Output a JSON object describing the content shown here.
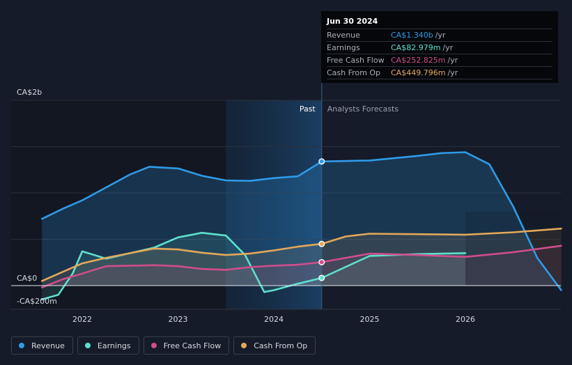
{
  "chart_data": {
    "type": "area",
    "x_ticks": [
      "2022",
      "2023",
      "2024",
      "2025",
      "2026"
    ],
    "y_ticks": [
      {
        "label": "CA$2b",
        "value": 2000
      },
      {
        "label": "CA$0",
        "value": 0
      },
      {
        "label": "-CA$200m",
        "value": -200
      }
    ],
    "divider_labels": {
      "past": "Past",
      "forecast": "Analysts Forecasts"
    },
    "highlight_date": 2024.5,
    "series": [
      {
        "name": "Revenue",
        "color": "#2f9be8",
        "points": [
          [
            2021.58,
            720
          ],
          [
            2021.8,
            830
          ],
          [
            2022.0,
            920
          ],
          [
            2022.25,
            1060
          ],
          [
            2022.5,
            1200
          ],
          [
            2022.7,
            1283
          ],
          [
            2023.0,
            1265
          ],
          [
            2023.25,
            1185
          ],
          [
            2023.5,
            1135
          ],
          [
            2023.75,
            1130
          ],
          [
            2024.0,
            1160
          ],
          [
            2024.25,
            1180
          ],
          [
            2024.5,
            1340
          ],
          [
            2025.0,
            1350
          ],
          [
            2025.5,
            1400
          ],
          [
            2025.75,
            1430
          ],
          [
            2026.0,
            1440
          ],
          [
            2026.25,
            1310
          ],
          [
            2026.5,
            850
          ],
          [
            2026.75,
            300
          ],
          [
            2027.0,
            -50
          ]
        ]
      },
      {
        "name": "Earnings",
        "color": "#5de0cd",
        "points": [
          [
            2021.58,
            -150
          ],
          [
            2021.75,
            -100
          ],
          [
            2021.9,
            130
          ],
          [
            2022.0,
            370
          ],
          [
            2022.25,
            290
          ],
          [
            2022.5,
            350
          ],
          [
            2022.75,
            410
          ],
          [
            2023.0,
            520
          ],
          [
            2023.25,
            570
          ],
          [
            2023.5,
            540
          ],
          [
            2023.7,
            330
          ],
          [
            2023.9,
            -70
          ],
          [
            2024.0,
            -50
          ],
          [
            2024.25,
            20
          ],
          [
            2024.5,
            83
          ],
          [
            2025.0,
            320
          ],
          [
            2025.5,
            340
          ],
          [
            2026.0,
            350
          ]
        ]
      },
      {
        "name": "Free Cash Flow",
        "color": "#d04d8c",
        "points": [
          [
            2021.58,
            -20
          ],
          [
            2021.8,
            70
          ],
          [
            2022.0,
            130
          ],
          [
            2022.25,
            210
          ],
          [
            2022.5,
            215
          ],
          [
            2022.75,
            220
          ],
          [
            2023.0,
            210
          ],
          [
            2023.25,
            180
          ],
          [
            2023.5,
            170
          ],
          [
            2023.75,
            200
          ],
          [
            2024.0,
            215
          ],
          [
            2024.25,
            225
          ],
          [
            2024.5,
            253
          ],
          [
            2025.0,
            345
          ],
          [
            2025.5,
            330
          ],
          [
            2026.0,
            310
          ],
          [
            2026.5,
            360
          ],
          [
            2027.0,
            430
          ]
        ]
      },
      {
        "name": "Cash From Op",
        "color": "#e4a85a",
        "points": [
          [
            2021.58,
            50
          ],
          [
            2021.8,
            150
          ],
          [
            2022.0,
            240
          ],
          [
            2022.25,
            300
          ],
          [
            2022.5,
            350
          ],
          [
            2022.75,
            400
          ],
          [
            2023.0,
            390
          ],
          [
            2023.25,
            355
          ],
          [
            2023.5,
            330
          ],
          [
            2023.75,
            345
          ],
          [
            2024.0,
            380
          ],
          [
            2024.25,
            420
          ],
          [
            2024.5,
            450
          ],
          [
            2024.75,
            530
          ],
          [
            2025.0,
            560
          ],
          [
            2025.5,
            555
          ],
          [
            2026.0,
            550
          ],
          [
            2026.5,
            575
          ],
          [
            2027.0,
            615
          ]
        ]
      }
    ]
  },
  "tooltip": {
    "date": "Jun 30 2024",
    "rows": [
      {
        "label": "Revenue",
        "value": "CA$1.340b",
        "unit": "/yr",
        "color": "#2f9be8"
      },
      {
        "label": "Earnings",
        "value": "CA$82.979m",
        "unit": "/yr",
        "color": "#5de0cd"
      },
      {
        "label": "Free Cash Flow",
        "value": "CA$252.825m",
        "unit": "/yr",
        "color": "#d04d8c"
      },
      {
        "label": "Cash From Op",
        "value": "CA$449.796m",
        "unit": "/yr",
        "color": "#e4a85a"
      }
    ]
  },
  "legend": [
    {
      "label": "Revenue",
      "color": "#2f9be8"
    },
    {
      "label": "Earnings",
      "color": "#5de0cd"
    },
    {
      "label": "Free Cash Flow",
      "color": "#d04d8c"
    },
    {
      "label": "Cash From Op",
      "color": "#e4a85a"
    }
  ]
}
